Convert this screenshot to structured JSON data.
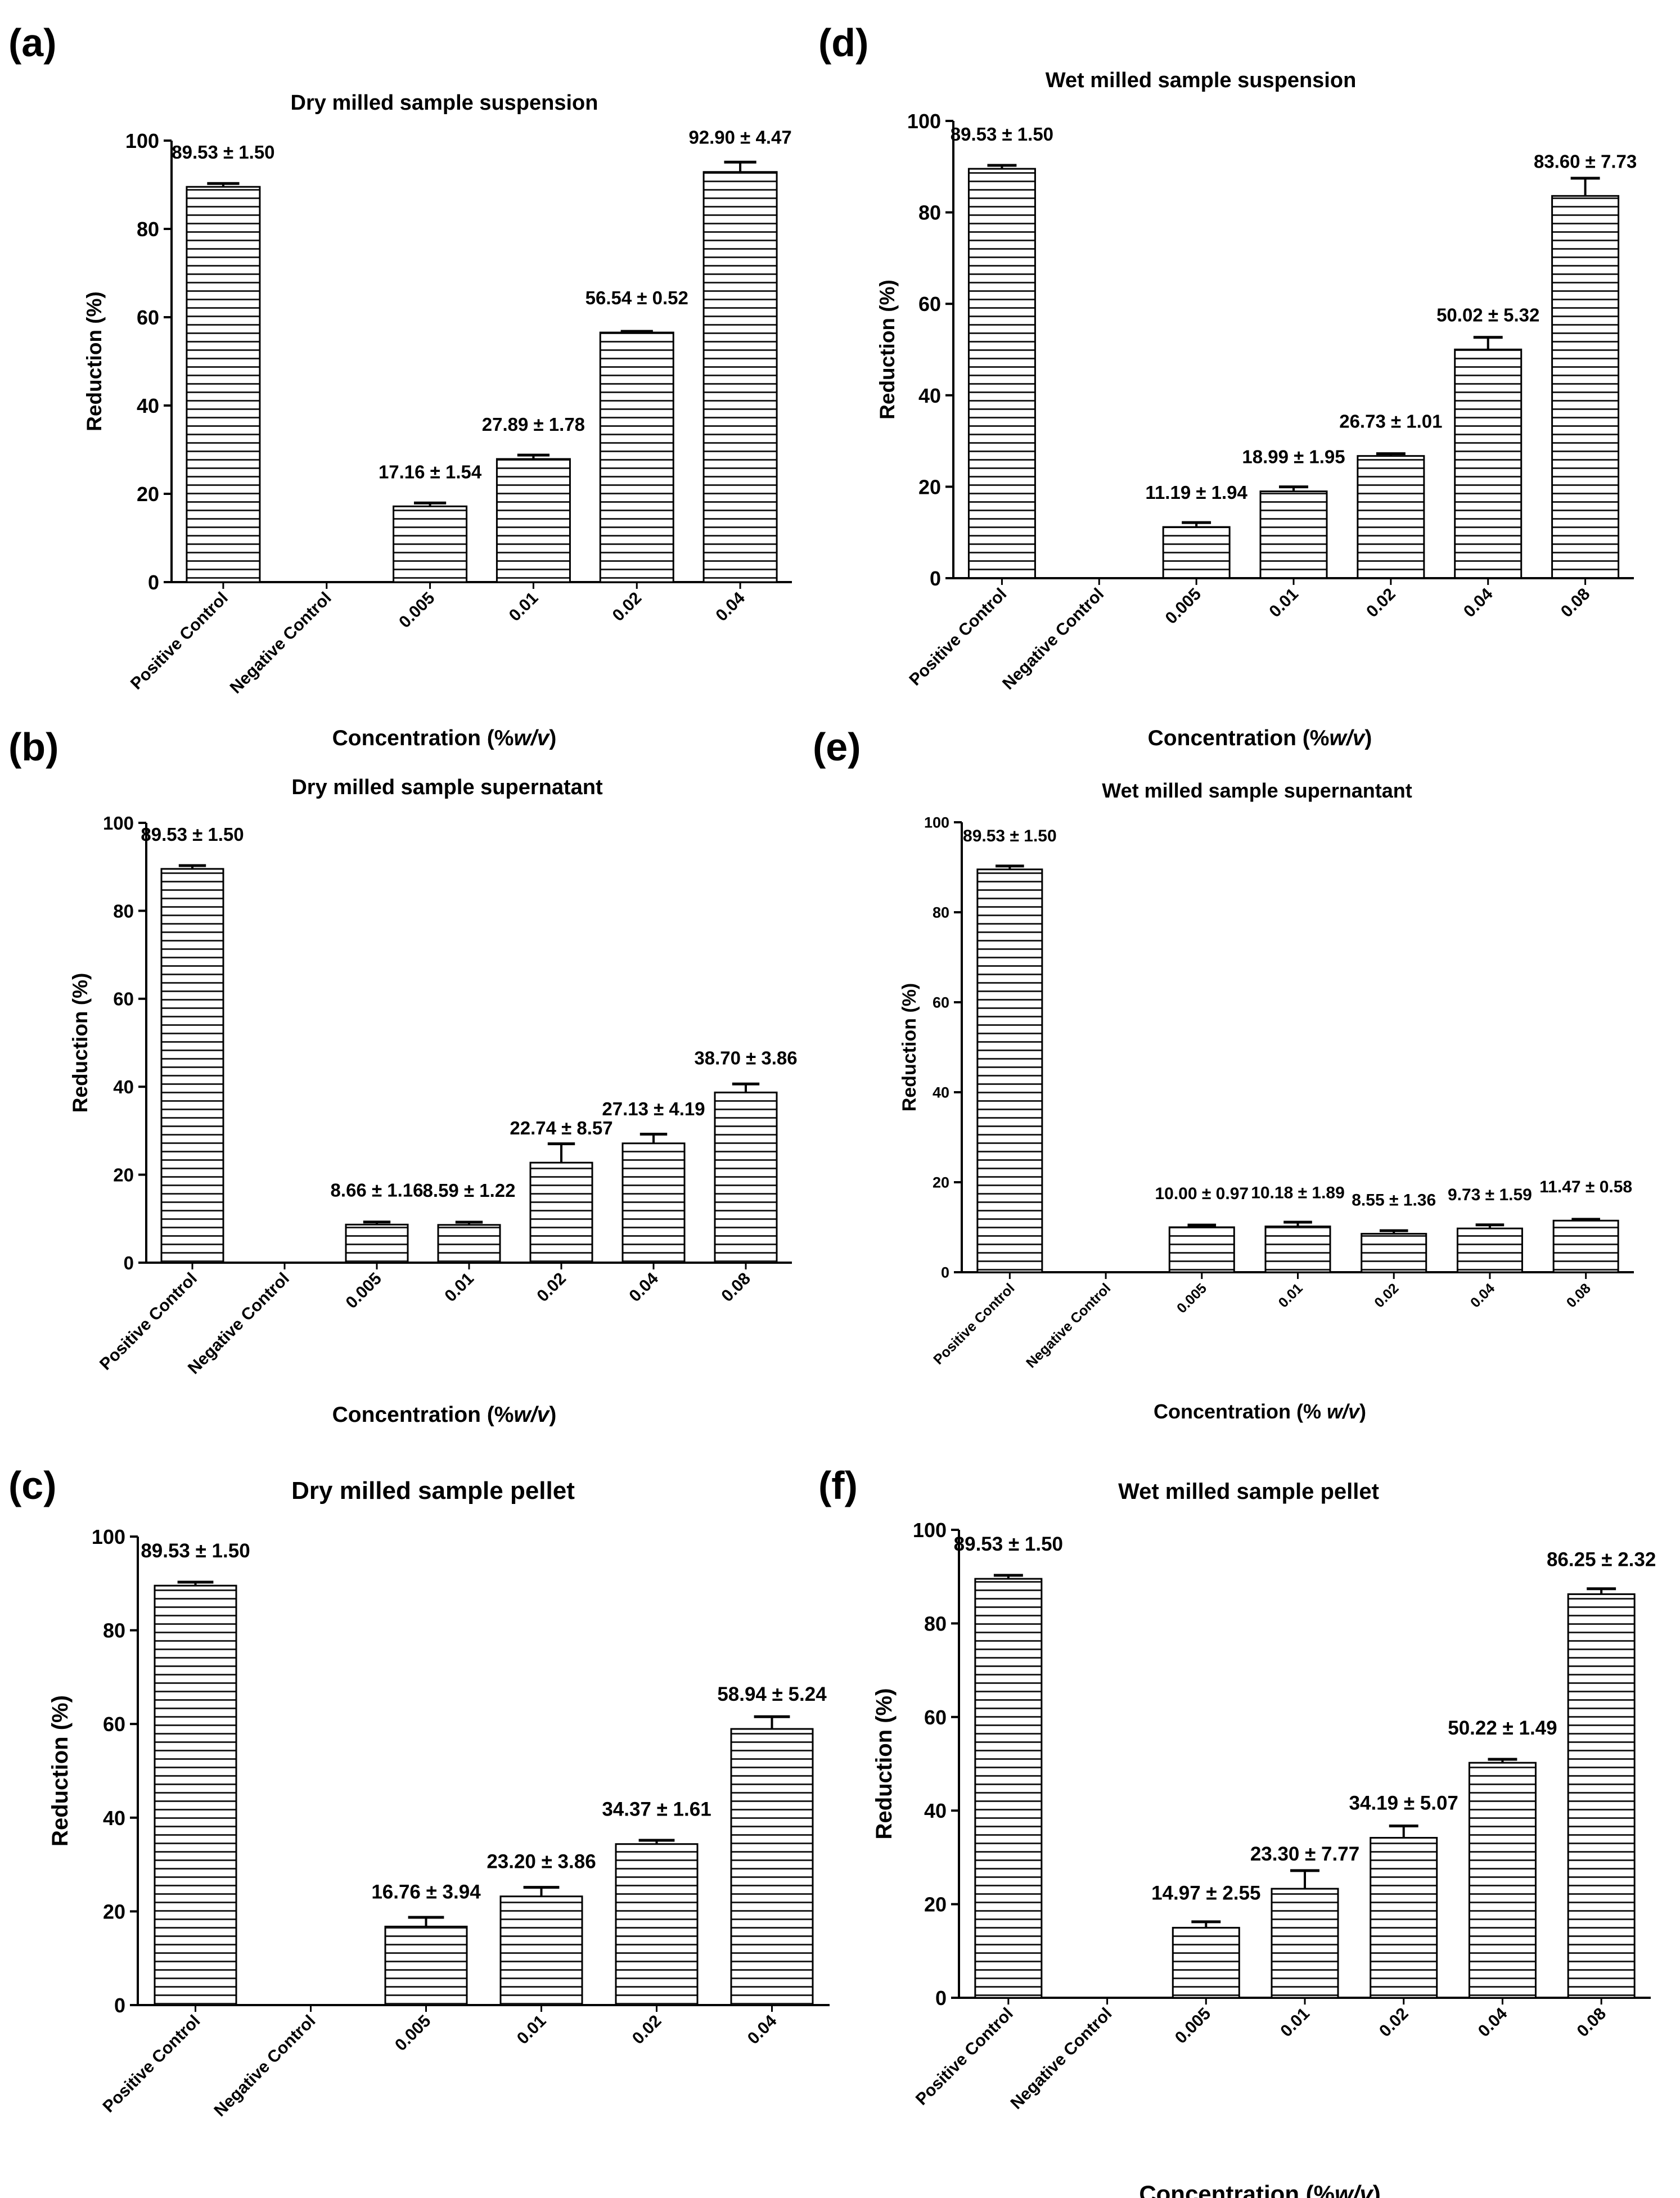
{
  "figure": {
    "background": "#ffffff",
    "bar_fill": "#ffffff",
    "stripe_color": "#222222",
    "axis_color": "#000000"
  },
  "chart_data": [
    {
      "panel": "(a)",
      "type": "bar",
      "title": "Dry milled sample suspension",
      "xlabel": "Concentration (%w/v)",
      "xlabel_parts": [
        "Concentration (%",
        "w/v",
        ")"
      ],
      "ylabel": "Reduction (%)",
      "ylim": [
        0,
        100
      ],
      "yticks": [
        0,
        20,
        40,
        60,
        80,
        100
      ],
      "categories": [
        "Positive Control",
        "Negative Control",
        "0.005",
        "0.01",
        "0.02",
        "0.04"
      ],
      "values": [
        89.53,
        0,
        17.16,
        27.89,
        56.54,
        92.9
      ],
      "errors": [
        1.5,
        0,
        1.54,
        1.78,
        0.52,
        4.47
      ],
      "labels": [
        "89.53 ± 1.50",
        "",
        "17.16 ± 1.54",
        "27.89 ± 1.78",
        "56.54 ± 0.52",
        "92.90 ± 4.47"
      ]
    },
    {
      "panel": "(b)",
      "type": "bar",
      "title": "Dry milled sample supernatant",
      "xlabel": "Concentration (%w/v)",
      "xlabel_parts": [
        "Concentration (%",
        "w/v",
        ")"
      ],
      "ylabel": "Reduction (%)",
      "ylim": [
        0,
        100
      ],
      "yticks": [
        0,
        20,
        40,
        60,
        80,
        100
      ],
      "categories": [
        "Positive Control",
        "Negative Control",
        "0.005",
        "0.01",
        "0.02",
        "0.04",
        "0.08"
      ],
      "values": [
        89.53,
        0,
        8.66,
        8.59,
        22.74,
        27.13,
        38.7
      ],
      "errors": [
        1.5,
        0,
        1.16,
        1.22,
        8.57,
        4.19,
        3.86
      ],
      "labels": [
        "89.53 ± 1.50",
        "",
        "8.66 ± 1.16",
        "8.59 ± 1.22",
        "22.74 ± 8.57",
        "27.13 ± 4.19",
        "38.70 ± 3.86"
      ]
    },
    {
      "panel": "(c)",
      "type": "bar",
      "title": "Dry milled sample pellet",
      "xlabel": "Concentration (%w/v)",
      "xlabel_parts": [
        "Concentration (%",
        "w/v",
        ")"
      ],
      "ylabel": "Reduction (%)",
      "ylim": [
        0,
        100
      ],
      "yticks": [
        0,
        20,
        40,
        60,
        80,
        100
      ],
      "categories": [
        "Positive Control",
        "Negative Control",
        "0.005",
        "0.01",
        "0.02",
        "0.04"
      ],
      "values": [
        89.53,
        0,
        16.76,
        23.2,
        34.37,
        58.94
      ],
      "errors": [
        1.5,
        0,
        3.94,
        3.86,
        1.61,
        5.24
      ],
      "labels": [
        "89.53 ± 1.50",
        "",
        "16.76 ± 3.94",
        "23.20 ± 3.86",
        "34.37 ± 1.61",
        "58.94 ± 5.24"
      ]
    },
    {
      "panel": "(d)",
      "type": "bar",
      "title": "Wet milled sample suspension",
      "xlabel": "Concentration (%w/v)",
      "xlabel_parts": [
        "Concentration (%",
        "w/v",
        ")"
      ],
      "ylabel": "Reduction (%)",
      "ylim": [
        0,
        100
      ],
      "yticks": [
        0,
        20,
        40,
        60,
        80,
        100
      ],
      "categories": [
        "Positive Control",
        "Negative Control",
        "0.005",
        "0.01",
        "0.02",
        "0.04",
        "0.08"
      ],
      "values": [
        89.53,
        0,
        11.19,
        18.99,
        26.73,
        50.02,
        83.6
      ],
      "errors": [
        1.5,
        0,
        1.94,
        1.95,
        1.01,
        5.32,
        7.73
      ],
      "labels": [
        "89.53 ± 1.50",
        "",
        "11.19 ± 1.94",
        "18.99 ± 1.95",
        "26.73 ± 1.01",
        "50.02 ± 5.32",
        "83.60 ± 7.73"
      ]
    },
    {
      "panel": "(e)",
      "type": "bar",
      "title": "Wet milled sample supernantant",
      "xlabel": "Concentration (% w/v)",
      "xlabel_parts": [
        "Concentration (% ",
        "w/v",
        ")"
      ],
      "ylabel": "Reduction (%)",
      "ylim": [
        0,
        100
      ],
      "yticks": [
        0,
        20,
        40,
        60,
        80,
        100
      ],
      "categories": [
        "Positive Control",
        "Negative Control",
        "0.005",
        "0.01",
        "0.02",
        "0.04",
        "0.08"
      ],
      "values": [
        89.53,
        0,
        10.0,
        10.18,
        8.55,
        9.73,
        11.47
      ],
      "errors": [
        1.5,
        0,
        0.97,
        1.89,
        1.36,
        1.59,
        0.58
      ],
      "labels": [
        "89.53 ± 1.50",
        "",
        "10.00 ± 0.97",
        "10.18 ± 1.89",
        "8.55 ± 1.36",
        "9.73 ± 1.59",
        "11.47 ± 0.58"
      ]
    },
    {
      "panel": "(f)",
      "type": "bar",
      "title": "Wet milled sample pellet",
      "xlabel": "Concentration (%w/v)",
      "xlabel_parts": [
        "Concentration (%",
        "w/v",
        ")"
      ],
      "ylabel": "Reduction (%)",
      "ylim": [
        0,
        100
      ],
      "yticks": [
        0,
        20,
        40,
        60,
        80,
        100
      ],
      "categories": [
        "Positive Control",
        "Negative Control",
        "0.005",
        "0.01",
        "0.02",
        "0.04",
        "0.08"
      ],
      "values": [
        89.53,
        0,
        14.97,
        23.3,
        34.19,
        50.22,
        86.25
      ],
      "errors": [
        1.5,
        0,
        2.55,
        7.77,
        5.07,
        1.49,
        2.32
      ],
      "labels": [
        "89.53 ± 1.50",
        "",
        "14.97 ± 2.55",
        "23.30 ± 7.77",
        "34.19 ± 5.07",
        "50.22 ± 1.49",
        "86.25 ± 2.32"
      ]
    }
  ]
}
